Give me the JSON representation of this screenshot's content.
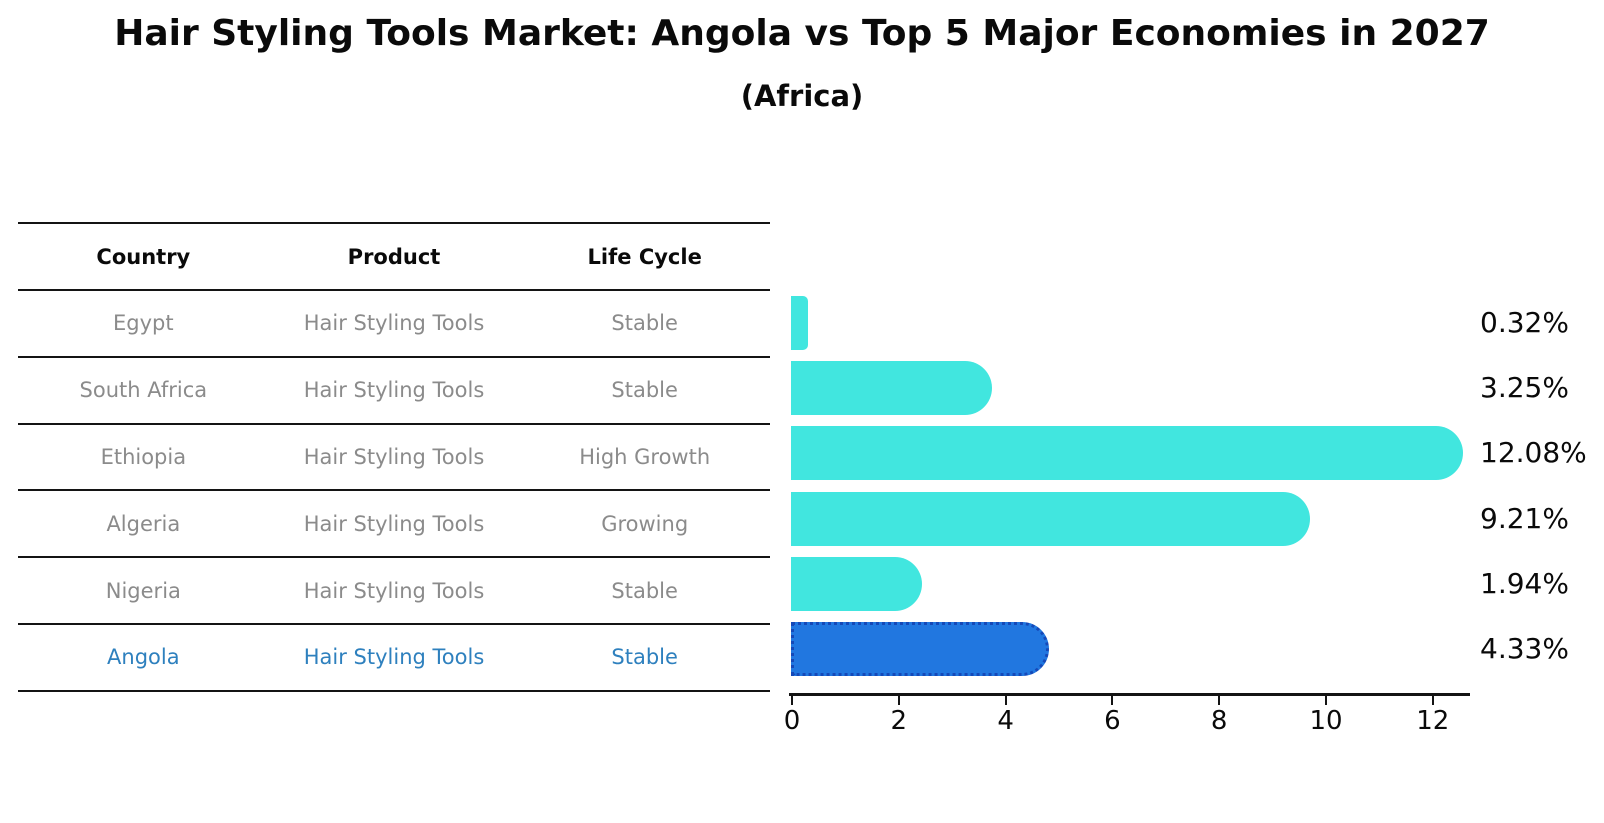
{
  "header": {
    "title": "Hair Styling Tools Market: Angola vs Top 5 Major Economies in 2027",
    "subtitle": "(Africa)"
  },
  "table": {
    "headers": [
      "Country",
      "Product",
      "Life Cycle"
    ],
    "rows": [
      {
        "country": "Egypt",
        "product": "Hair Styling Tools",
        "life_cycle": "Stable",
        "highlighted": false
      },
      {
        "country": "South Africa",
        "product": "Hair Styling Tools",
        "life_cycle": "Stable",
        "highlighted": false
      },
      {
        "country": "Ethiopia",
        "product": "Hair Styling Tools",
        "life_cycle": "High Growth",
        "highlighted": false
      },
      {
        "country": "Algeria",
        "product": "Hair Styling Tools",
        "life_cycle": "Growing",
        "highlighted": false
      },
      {
        "country": "Nigeria",
        "product": "Hair Styling Tools",
        "life_cycle": "Stable",
        "highlighted": false
      },
      {
        "country": "Angola",
        "product": "Hair Styling Tools",
        "life_cycle": "Stable",
        "highlighted": true
      }
    ]
  },
  "chart_data": {
    "type": "bar",
    "orientation": "horizontal",
    "title": "Hair Styling Tools Market: Angola vs Top 5 Major Economies in 2027",
    "subtitle": "(Africa)",
    "categories": [
      "Egypt",
      "South Africa",
      "Ethiopia",
      "Algeria",
      "Nigeria",
      "Angola"
    ],
    "values": [
      0.32,
      3.25,
      12.08,
      9.21,
      1.94,
      4.33
    ],
    "value_labels": [
      "0.32%",
      "3.25%",
      "12.08%",
      "9.21%",
      "1.94%",
      "4.33%"
    ],
    "xlabel": "",
    "ylabel": "",
    "xlim": [
      0,
      12.7
    ],
    "xticks": [
      0,
      2,
      4,
      6,
      8,
      10,
      12
    ],
    "grid": false,
    "legend": false,
    "highlight_index": 5
  },
  "colors": {
    "bar": "#41E6DF",
    "highlight_bar": "#2177E0",
    "highlight_border": "#1549B8",
    "text": "#0A0A0A",
    "text_muted": "#8B8B8B",
    "text_highlight": "#2E80BE",
    "line": "#141414"
  }
}
